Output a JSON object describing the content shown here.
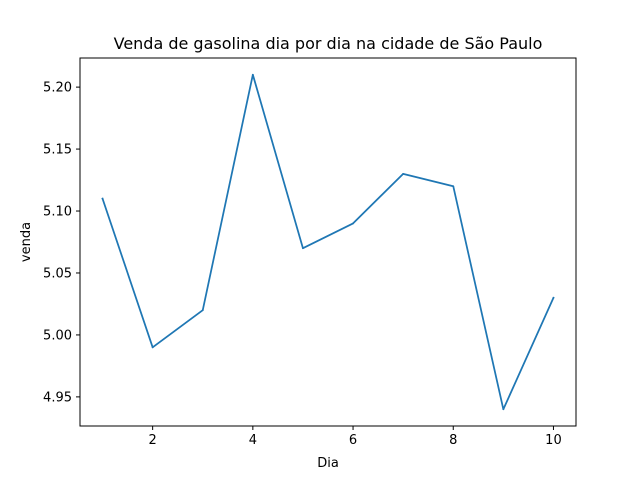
{
  "chart_data": {
    "type": "line",
    "title": "Venda de gasolina dia por dia na cidade de São Paulo",
    "xlabel": "Dia",
    "ylabel": "venda",
    "x": [
      1,
      2,
      3,
      4,
      5,
      6,
      7,
      8,
      9,
      10
    ],
    "series": [
      {
        "values": [
          5.11,
          4.99,
          5.02,
          5.21,
          5.07,
          5.09,
          5.13,
          5.12,
          4.94,
          5.03
        ],
        "color": "#1f77b4"
      }
    ],
    "xticks": [
      2,
      4,
      6,
      8,
      10
    ],
    "xtick_labels": [
      "2",
      "4",
      "6",
      "8",
      "10"
    ],
    "yticks": [
      4.95,
      5.0,
      5.05,
      5.1,
      5.15,
      5.2
    ],
    "ytick_labels": [
      "4.95",
      "5.00",
      "5.05",
      "5.10",
      "5.15",
      "5.20"
    ],
    "xlim": [
      0.55,
      10.45
    ],
    "ylim": [
      4.9265,
      5.2235
    ],
    "grid": false,
    "legend": "none"
  }
}
